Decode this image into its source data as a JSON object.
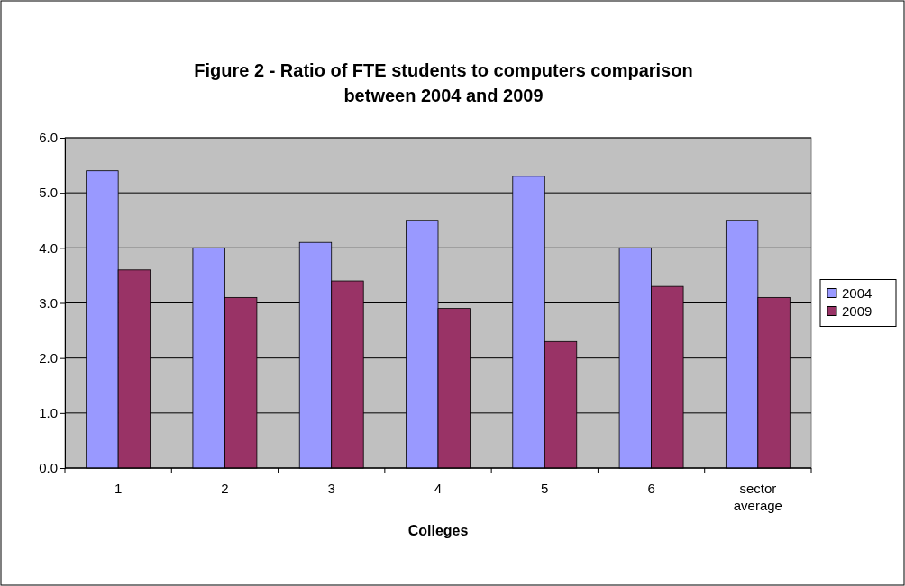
{
  "chart_data": {
    "type": "bar",
    "title": "Figure 2 - Ratio of FTE students to computers comparison between 2004 and 2009",
    "xlabel": "Colleges",
    "categories": [
      "1",
      "2",
      "3",
      "4",
      "5",
      "6",
      "sector average"
    ],
    "series": [
      {
        "name": "2004",
        "color": "#9999ff",
        "values": [
          5.4,
          4.0,
          4.1,
          4.5,
          5.3,
          4.0,
          4.5
        ]
      },
      {
        "name": "2009",
        "color": "#993366",
        "values": [
          3.6,
          3.1,
          3.4,
          2.9,
          2.3,
          3.3,
          3.1
        ]
      }
    ],
    "ylim": [
      0,
      6
    ],
    "yticks": [
      {
        "value": 0,
        "label": "0.0"
      },
      {
        "value": 1,
        "label": "1.0"
      },
      {
        "value": 2,
        "label": "2.0"
      },
      {
        "value": 3,
        "label": "3.0"
      },
      {
        "value": 4,
        "label": "4.0"
      },
      {
        "value": 5,
        "label": "5.0"
      },
      {
        "value": 6,
        "label": "6.0"
      }
    ],
    "grid": "y",
    "legend": "right"
  }
}
